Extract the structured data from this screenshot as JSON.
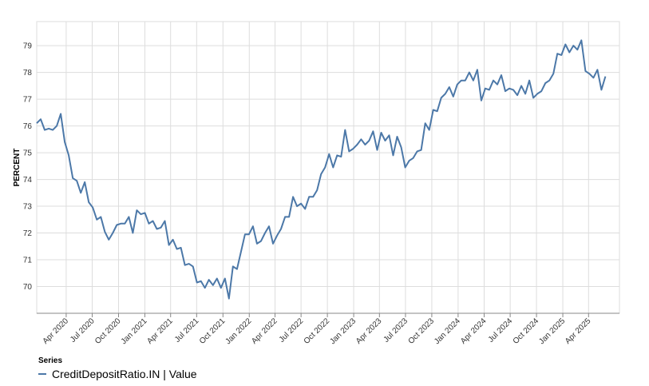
{
  "chart_data": {
    "type": "line",
    "ylabel": "PERCENT",
    "ylim": [
      69.0,
      79.9
    ],
    "yticks": [
      70,
      71,
      72,
      73,
      74,
      75,
      76,
      77,
      78,
      79
    ],
    "xlim": [
      "2019-12-20",
      "2025-07-18"
    ],
    "xticks": [
      {
        "date": "2020-04-01",
        "label": "Apr 2020"
      },
      {
        "date": "2020-07-01",
        "label": "Jul 2020"
      },
      {
        "date": "2020-10-01",
        "label": "Oct 2020"
      },
      {
        "date": "2021-01-01",
        "label": "Jan 2021"
      },
      {
        "date": "2021-04-01",
        "label": "Apr 2021"
      },
      {
        "date": "2021-07-01",
        "label": "Jul 2021"
      },
      {
        "date": "2021-10-01",
        "label": "Oct 2021"
      },
      {
        "date": "2022-01-01",
        "label": "Jan 2022"
      },
      {
        "date": "2022-04-01",
        "label": "Apr 2022"
      },
      {
        "date": "2022-07-01",
        "label": "Jul 2022"
      },
      {
        "date": "2022-10-01",
        "label": "Oct 2022"
      },
      {
        "date": "2023-01-01",
        "label": "Jan 2023"
      },
      {
        "date": "2023-04-01",
        "label": "Apr 2023"
      },
      {
        "date": "2023-07-01",
        "label": "Jul 2023"
      },
      {
        "date": "2023-10-01",
        "label": "Oct 2023"
      },
      {
        "date": "2024-01-01",
        "label": "Jan 2024"
      },
      {
        "date": "2024-04-01",
        "label": "Apr 2024"
      },
      {
        "date": "2024-07-01",
        "label": "Jul 2024"
      },
      {
        "date": "2024-10-01",
        "label": "Oct 2024"
      },
      {
        "date": "2025-01-01",
        "label": "Jan 2025"
      },
      {
        "date": "2025-04-01",
        "label": "Apr 2025"
      }
    ],
    "grid": true,
    "legend": {
      "title": "Series",
      "placement": "bottom-left"
    },
    "series": [
      {
        "name": "CreditDepositRatio.IN | Value",
        "color": "#4c78a8",
        "points": [
          [
            "2019-12-20",
            76.1
          ],
          [
            "2020-01-03",
            76.25
          ],
          [
            "2020-01-17",
            75.85
          ],
          [
            "2020-01-31",
            75.9
          ],
          [
            "2020-02-14",
            75.85
          ],
          [
            "2020-02-28",
            76.0
          ],
          [
            "2020-03-13",
            76.45
          ],
          [
            "2020-03-27",
            75.4
          ],
          [
            "2020-04-10",
            74.9
          ],
          [
            "2020-04-24",
            74.05
          ],
          [
            "2020-05-08",
            73.95
          ],
          [
            "2020-05-22",
            73.5
          ],
          [
            "2020-06-05",
            73.9
          ],
          [
            "2020-06-19",
            73.15
          ],
          [
            "2020-07-03",
            72.95
          ],
          [
            "2020-07-17",
            72.5
          ],
          [
            "2020-07-31",
            72.6
          ],
          [
            "2020-08-14",
            72.05
          ],
          [
            "2020-08-28",
            71.75
          ],
          [
            "2020-09-11",
            72.0
          ],
          [
            "2020-09-25",
            72.3
          ],
          [
            "2020-10-09",
            72.35
          ],
          [
            "2020-10-23",
            72.35
          ],
          [
            "2020-11-06",
            72.6
          ],
          [
            "2020-11-20",
            72.0
          ],
          [
            "2020-12-04",
            72.85
          ],
          [
            "2020-12-18",
            72.7
          ],
          [
            "2021-01-01",
            72.75
          ],
          [
            "2021-01-15",
            72.35
          ],
          [
            "2021-01-29",
            72.45
          ],
          [
            "2021-02-12",
            72.15
          ],
          [
            "2021-02-26",
            72.2
          ],
          [
            "2021-03-12",
            72.45
          ],
          [
            "2021-03-26",
            71.55
          ],
          [
            "2021-04-09",
            71.75
          ],
          [
            "2021-04-23",
            71.4
          ],
          [
            "2021-05-07",
            71.45
          ],
          [
            "2021-05-21",
            70.8
          ],
          [
            "2021-06-04",
            70.85
          ],
          [
            "2021-06-18",
            70.75
          ],
          [
            "2021-07-02",
            70.15
          ],
          [
            "2021-07-16",
            70.2
          ],
          [
            "2021-07-30",
            69.95
          ],
          [
            "2021-08-13",
            70.25
          ],
          [
            "2021-08-27",
            70.05
          ],
          [
            "2021-09-10",
            70.3
          ],
          [
            "2021-09-24",
            69.95
          ],
          [
            "2021-10-08",
            70.3
          ],
          [
            "2021-10-22",
            69.55
          ],
          [
            "2021-11-05",
            70.75
          ],
          [
            "2021-11-19",
            70.65
          ],
          [
            "2021-12-03",
            71.3
          ],
          [
            "2021-12-17",
            71.95
          ],
          [
            "2021-12-31",
            71.95
          ],
          [
            "2022-01-14",
            72.25
          ],
          [
            "2022-01-28",
            71.6
          ],
          [
            "2022-02-11",
            71.7
          ],
          [
            "2022-02-25",
            72.0
          ],
          [
            "2022-03-11",
            72.25
          ],
          [
            "2022-03-25",
            71.6
          ],
          [
            "2022-04-08",
            71.9
          ],
          [
            "2022-04-22",
            72.15
          ],
          [
            "2022-05-06",
            72.6
          ],
          [
            "2022-05-20",
            72.6
          ],
          [
            "2022-06-03",
            73.35
          ],
          [
            "2022-06-17",
            73.0
          ],
          [
            "2022-07-01",
            73.1
          ],
          [
            "2022-07-15",
            72.9
          ],
          [
            "2022-07-29",
            73.35
          ],
          [
            "2022-08-12",
            73.35
          ],
          [
            "2022-08-26",
            73.6
          ],
          [
            "2022-09-09",
            74.2
          ],
          [
            "2022-09-23",
            74.45
          ],
          [
            "2022-10-07",
            74.95
          ],
          [
            "2022-10-21",
            74.45
          ],
          [
            "2022-11-04",
            74.9
          ],
          [
            "2022-11-18",
            74.85
          ],
          [
            "2022-12-02",
            75.85
          ],
          [
            "2022-12-16",
            75.05
          ],
          [
            "2022-12-30",
            75.15
          ],
          [
            "2023-01-13",
            75.3
          ],
          [
            "2023-01-27",
            75.5
          ],
          [
            "2023-02-10",
            75.3
          ],
          [
            "2023-02-24",
            75.45
          ],
          [
            "2023-03-10",
            75.8
          ],
          [
            "2023-03-24",
            75.1
          ],
          [
            "2023-04-07",
            75.75
          ],
          [
            "2023-04-21",
            75.45
          ],
          [
            "2023-05-05",
            75.65
          ],
          [
            "2023-05-19",
            74.9
          ],
          [
            "2023-06-02",
            75.6
          ],
          [
            "2023-06-16",
            75.2
          ],
          [
            "2023-06-30",
            74.45
          ],
          [
            "2023-07-14",
            74.7
          ],
          [
            "2023-07-28",
            74.8
          ],
          [
            "2023-08-11",
            75.05
          ],
          [
            "2023-08-25",
            75.1
          ],
          [
            "2023-09-08",
            76.1
          ],
          [
            "2023-09-22",
            75.85
          ],
          [
            "2023-10-06",
            76.6
          ],
          [
            "2023-10-20",
            76.55
          ],
          [
            "2023-11-03",
            77.05
          ],
          [
            "2023-11-17",
            77.2
          ],
          [
            "2023-12-01",
            77.45
          ],
          [
            "2023-12-15",
            77.1
          ],
          [
            "2023-12-29",
            77.55
          ],
          [
            "2024-01-12",
            77.7
          ],
          [
            "2024-01-26",
            77.7
          ],
          [
            "2024-02-09",
            78.0
          ],
          [
            "2024-02-23",
            77.7
          ],
          [
            "2024-03-08",
            78.1
          ],
          [
            "2024-03-22",
            76.95
          ],
          [
            "2024-04-05",
            77.4
          ],
          [
            "2024-04-19",
            77.35
          ],
          [
            "2024-05-03",
            77.7
          ],
          [
            "2024-05-17",
            77.55
          ],
          [
            "2024-05-31",
            77.9
          ],
          [
            "2024-06-14",
            77.3
          ],
          [
            "2024-06-28",
            77.4
          ],
          [
            "2024-07-12",
            77.35
          ],
          [
            "2024-07-26",
            77.15
          ],
          [
            "2024-08-09",
            77.5
          ],
          [
            "2024-08-23",
            77.2
          ],
          [
            "2024-09-06",
            77.7
          ],
          [
            "2024-09-20",
            77.05
          ],
          [
            "2024-10-04",
            77.2
          ],
          [
            "2024-10-18",
            77.3
          ],
          [
            "2024-11-01",
            77.6
          ],
          [
            "2024-11-15",
            77.7
          ],
          [
            "2024-11-29",
            77.95
          ],
          [
            "2024-12-13",
            78.7
          ],
          [
            "2024-12-27",
            78.65
          ],
          [
            "2025-01-10",
            79.05
          ],
          [
            "2025-01-24",
            78.75
          ],
          [
            "2025-02-07",
            79.0
          ],
          [
            "2025-02-21",
            78.85
          ],
          [
            "2025-03-07",
            79.2
          ],
          [
            "2025-03-21",
            78.05
          ],
          [
            "2025-04-04",
            77.95
          ],
          [
            "2025-04-18",
            77.8
          ],
          [
            "2025-05-02",
            78.1
          ],
          [
            "2025-05-16",
            77.35
          ],
          [
            "2025-05-30",
            77.85
          ]
        ]
      }
    ]
  }
}
